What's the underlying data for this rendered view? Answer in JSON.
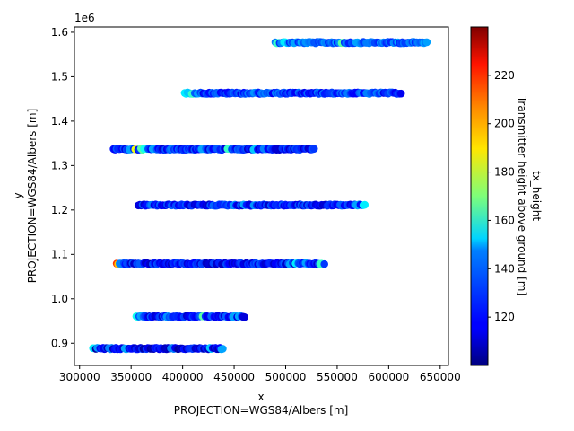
{
  "chart_data": {
    "type": "scatter",
    "x_axis": {
      "label_line1": "x",
      "label_line2": "PROJECTION=WGS84/Albers [m]",
      "ticks": [
        300000,
        350000,
        400000,
        450000,
        500000,
        550000,
        600000,
        650000
      ],
      "tick_labels": [
        "300000",
        "350000",
        "400000",
        "450000",
        "500000",
        "550000",
        "600000",
        "650000"
      ],
      "range": [
        295000,
        658000
      ]
    },
    "y_axis": {
      "label_line1": "y",
      "label_line2": "PROJECTION=WGS84/Albers [m]",
      "ticks": [
        0.9,
        1.0,
        1.1,
        1.2,
        1.3,
        1.4,
        1.5,
        1.6
      ],
      "tick_labels": [
        "0.9",
        "1.0",
        "1.1",
        "1.2",
        "1.3",
        "1.4",
        "1.5",
        "1.6"
      ],
      "offset_text": "1e6",
      "range": [
        0.85,
        1.612
      ]
    },
    "colorbar": {
      "label_line1": "tx_height",
      "label_line2": "Transmitter height above ground [m]",
      "ticks": [
        120,
        140,
        160,
        180,
        200,
        220
      ],
      "tick_labels": [
        "120",
        "140",
        "160",
        "180",
        "200",
        "220"
      ],
      "range": [
        100,
        240
      ],
      "colormap": "jet"
    },
    "grid": false,
    "marker": "circle",
    "series": [
      {
        "y": 1.577,
        "x_start": 490000,
        "x_end": 637000,
        "base": 128,
        "highlights": [
          [
            492000,
            160
          ],
          [
            500000,
            150
          ],
          [
            510000,
            140
          ],
          [
            520000,
            138
          ],
          [
            540000,
            135
          ],
          [
            555000,
            165
          ],
          [
            570000,
            140
          ]
        ]
      },
      {
        "y": 1.463,
        "x_start": 402000,
        "x_end": 612000,
        "base": 122,
        "highlights": [
          [
            403000,
            150
          ],
          [
            406000,
            145
          ],
          [
            410000,
            160
          ],
          [
            415000,
            140
          ],
          [
            470000,
            138
          ],
          [
            580000,
            135
          ]
        ]
      },
      {
        "y": 1.337,
        "x_start": 333000,
        "x_end": 528000,
        "base": 118,
        "highlights": [
          [
            350000,
            140
          ],
          [
            355000,
            185
          ],
          [
            360000,
            165
          ],
          [
            364000,
            155
          ],
          [
            372000,
            140
          ],
          [
            390000,
            135
          ],
          [
            420000,
            140
          ],
          [
            445000,
            160
          ],
          [
            470000,
            145
          ],
          [
            480000,
            135
          ]
        ]
      },
      {
        "y": 1.211,
        "x_start": 357000,
        "x_end": 578000,
        "base": 118,
        "highlights": [
          [
            370000,
            135
          ],
          [
            450000,
            138
          ],
          [
            460000,
            140
          ],
          [
            470000,
            138
          ],
          [
            570000,
            140
          ],
          [
            576000,
            150
          ]
        ]
      },
      {
        "y": 1.079,
        "x_start": 336000,
        "x_end": 538000,
        "base": 116,
        "highlights": [
          [
            336000,
            215
          ],
          [
            338000,
            195
          ],
          [
            340000,
            135
          ],
          [
            360000,
            130
          ],
          [
            505000,
            140
          ],
          [
            510000,
            150
          ],
          [
            520000,
            140
          ],
          [
            535000,
            160
          ]
        ]
      },
      {
        "y": 0.96,
        "x_start": 355000,
        "x_end": 460000,
        "base": 118,
        "highlights": [
          [
            355000,
            155
          ],
          [
            360000,
            140
          ],
          [
            385000,
            138
          ],
          [
            420000,
            165
          ],
          [
            450000,
            140
          ],
          [
            455000,
            140
          ]
        ]
      },
      {
        "y": 0.888,
        "x_start": 313000,
        "x_end": 440000,
        "base": 112,
        "highlights": [
          [
            313000,
            150
          ],
          [
            318000,
            138
          ],
          [
            330000,
            135
          ],
          [
            345000,
            140
          ],
          [
            390000,
            135
          ],
          [
            427000,
            145
          ],
          [
            438000,
            140
          ]
        ]
      }
    ]
  }
}
